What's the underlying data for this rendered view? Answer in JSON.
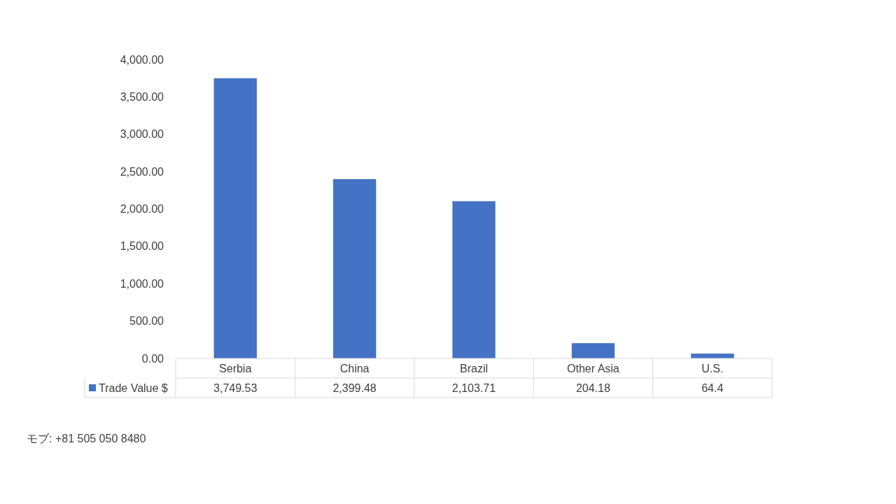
{
  "chart_data": {
    "type": "bar",
    "categories": [
      "Serbia",
      "China",
      "Brazil",
      "Other Asia",
      "U.S."
    ],
    "series": [
      {
        "name": "Trade Value $",
        "color": "#4472c4",
        "values": [
          3749.53,
          2399.48,
          2103.71,
          204.18,
          64.4
        ],
        "value_labels": [
          "3,749.53",
          "2,399.48",
          "2,103.71",
          "204.18",
          "64.4"
        ]
      }
    ],
    "ylim": [
      0,
      4000
    ],
    "yticks": [
      {
        "value": 0,
        "label": "0.00"
      },
      {
        "value": 500,
        "label": "500.00"
      },
      {
        "value": 1000,
        "label": "1,000.00"
      },
      {
        "value": 1500,
        "label": "1,500.00"
      },
      {
        "value": 2000,
        "label": "2,000.00"
      },
      {
        "value": 2500,
        "label": "2,500.00"
      },
      {
        "value": 3000,
        "label": "3,000.00"
      },
      {
        "value": 3500,
        "label": "3,500.00"
      },
      {
        "value": 4000,
        "label": "4,000.00"
      }
    ],
    "grid": false,
    "legend": "bottom left",
    "annotations": [
      "モブ: +81 505 050 8480"
    ]
  }
}
